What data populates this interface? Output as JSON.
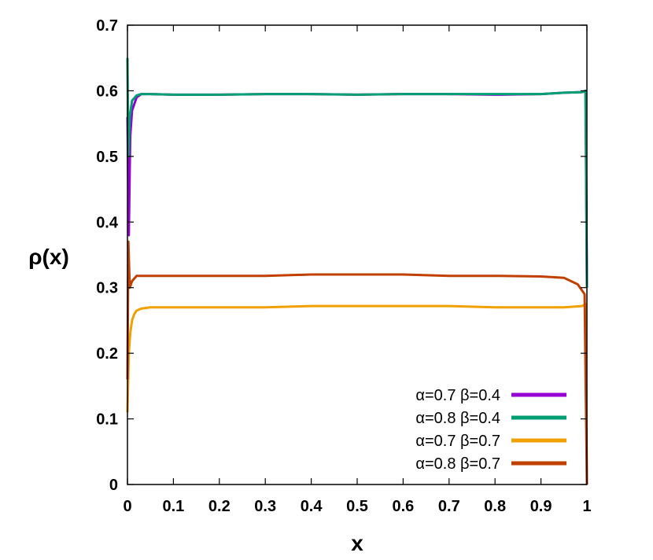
{
  "chart_data": {
    "type": "line",
    "title": "",
    "xlabel": "x",
    "ylabel": "ρ(x)",
    "xlim": [
      0,
      1
    ],
    "ylim": [
      0,
      0.7
    ],
    "x_ticks": [
      0,
      0.1,
      0.2,
      0.3,
      0.4,
      0.5,
      0.6,
      0.7,
      0.8,
      0.9,
      1
    ],
    "x_tick_labels": [
      "0",
      "0.1",
      "0.2",
      "0.3",
      "0.4",
      "0.5",
      "0.6",
      "0.7",
      "0.8",
      "0.9",
      "1"
    ],
    "y_ticks": [
      0,
      0.1,
      0.2,
      0.3,
      0.4,
      0.5,
      0.6,
      0.7
    ],
    "y_tick_labels": [
      "0",
      "0.1",
      "0.2",
      "0.3",
      "0.4",
      "0.5",
      "0.6",
      "0.7"
    ],
    "grid": false,
    "legend_position": "bottom-right",
    "series": [
      {
        "name": "α=0.7 β=0.4",
        "color": "#9400d3",
        "x": [
          0,
          0.003,
          0.006,
          0.01,
          0.02,
          0.03,
          0.05,
          0.1,
          0.2,
          0.3,
          0.4,
          0.5,
          0.6,
          0.7,
          0.8,
          0.9,
          0.95,
          0.99,
          0.997,
          1
        ],
        "y": [
          0.56,
          0.38,
          0.53,
          0.57,
          0.59,
          0.595,
          0.595,
          0.594,
          0.594,
          0.595,
          0.595,
          0.594,
          0.595,
          0.595,
          0.594,
          0.595,
          0.597,
          0.598,
          0.6,
          0.3
        ]
      },
      {
        "name": "α=0.8 β=0.4",
        "color": "#009e73",
        "x": [
          0,
          0.002,
          0.005,
          0.01,
          0.02,
          0.03,
          0.05,
          0.1,
          0.2,
          0.3,
          0.4,
          0.5,
          0.6,
          0.7,
          0.8,
          0.9,
          0.95,
          0.99,
          0.997,
          1
        ],
        "y": [
          0.65,
          0.5,
          0.56,
          0.585,
          0.593,
          0.595,
          0.595,
          0.594,
          0.594,
          0.595,
          0.595,
          0.594,
          0.595,
          0.595,
          0.595,
          0.595,
          0.597,
          0.598,
          0.6,
          0.3
        ]
      },
      {
        "name": "α=0.7 β=0.7",
        "color": "#f0a000",
        "x": [
          0,
          0.003,
          0.006,
          0.01,
          0.015,
          0.02,
          0.03,
          0.05,
          0.1,
          0.2,
          0.3,
          0.4,
          0.5,
          0.6,
          0.7,
          0.8,
          0.9,
          0.95,
          0.99,
          0.997,
          1
        ],
        "y": [
          0.11,
          0.2,
          0.23,
          0.25,
          0.26,
          0.265,
          0.268,
          0.27,
          0.27,
          0.27,
          0.27,
          0.272,
          0.272,
          0.272,
          0.272,
          0.27,
          0.27,
          0.27,
          0.272,
          0.275,
          0.0
        ]
      },
      {
        "name": "α=0.8 β=0.7",
        "color": "#c04000",
        "x": [
          0,
          0.002,
          0.005,
          0.01,
          0.02,
          0.03,
          0.05,
          0.1,
          0.2,
          0.3,
          0.4,
          0.5,
          0.6,
          0.7,
          0.8,
          0.9,
          0.95,
          0.98,
          0.995,
          1
        ],
        "y": [
          0.16,
          0.37,
          0.3,
          0.31,
          0.318,
          0.318,
          0.318,
          0.318,
          0.318,
          0.318,
          0.32,
          0.32,
          0.32,
          0.318,
          0.318,
          0.317,
          0.315,
          0.305,
          0.29,
          0.0
        ]
      }
    ]
  }
}
